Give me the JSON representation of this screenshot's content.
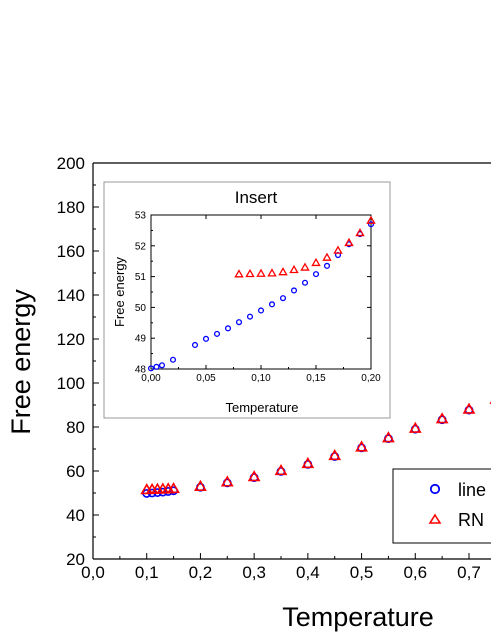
{
  "chart_data": [
    {
      "type": "scatter",
      "panel": "main",
      "title": "",
      "xlabel": "Temperature",
      "ylabel": "Free energy",
      "xlim": [
        0.0,
        0.75
      ],
      "ylim": [
        20,
        200
      ],
      "xticks": [
        "0,0",
        "0,1",
        "0,2",
        "0,3",
        "0,4",
        "0,5",
        "0,6",
        "0,7"
      ],
      "yticks": [
        "20",
        "40",
        "60",
        "80",
        "100",
        "120",
        "140",
        "160",
        "180",
        "200"
      ],
      "grid": false,
      "legend_position": "bottom-right",
      "series": [
        {
          "name": "line",
          "marker": "circle",
          "color": "#0000ff",
          "x": [
            0.1,
            0.11,
            0.12,
            0.13,
            0.14,
            0.15,
            0.2,
            0.25,
            0.3,
            0.35,
            0.4,
            0.45,
            0.5,
            0.55,
            0.6,
            0.65,
            0.7,
            0.75
          ],
          "y": [
            49.8,
            50.0,
            50.2,
            50.4,
            50.7,
            51.0,
            52.6,
            54.6,
            57.0,
            59.8,
            63.0,
            66.6,
            70.5,
            74.7,
            79.0,
            83.3,
            87.7,
            92.2
          ]
        },
        {
          "name": "RN",
          "marker": "triangle",
          "color": "#ff0000",
          "x": [
            0.1,
            0.11,
            0.12,
            0.13,
            0.14,
            0.15,
            0.2,
            0.25,
            0.3,
            0.35,
            0.4,
            0.45,
            0.5,
            0.55,
            0.6,
            0.65,
            0.7,
            0.75
          ],
          "y": [
            51.5,
            51.6,
            51.7,
            51.8,
            51.9,
            52.0,
            53.0,
            55.0,
            57.4,
            60.2,
            63.4,
            67.0,
            70.9,
            75.1,
            79.4,
            83.7,
            88.1,
            92.6
          ]
        }
      ]
    },
    {
      "type": "scatter",
      "panel": "inset",
      "title": "Insert",
      "xlabel": "Temperature",
      "ylabel": "Free energy",
      "xlim": [
        0.0,
        0.2
      ],
      "ylim": [
        48,
        53
      ],
      "xticks": [
        "0,00",
        "0,05",
        "0,10",
        "0,15",
        "0,20"
      ],
      "yticks": [
        "48",
        "49",
        "50",
        "51",
        "52",
        "53"
      ],
      "grid": false,
      "series": [
        {
          "name": "line",
          "marker": "circle",
          "color": "#0000ff",
          "x": [
            0.0,
            0.005,
            0.01,
            0.02,
            0.04,
            0.05,
            0.06,
            0.07,
            0.08,
            0.09,
            0.1,
            0.11,
            0.12,
            0.13,
            0.14,
            0.15,
            0.16,
            0.17,
            0.18,
            0.19,
            0.2
          ],
          "y": [
            48.02,
            48.07,
            48.12,
            48.3,
            48.78,
            48.98,
            49.14,
            49.32,
            49.52,
            49.7,
            49.9,
            50.1,
            50.3,
            50.55,
            50.8,
            51.08,
            51.35,
            51.7,
            52.05,
            52.38,
            52.7
          ]
        },
        {
          "name": "RN",
          "marker": "triangle",
          "color": "#ff0000",
          "x": [
            0.08,
            0.09,
            0.1,
            0.11,
            0.12,
            0.13,
            0.14,
            0.15,
            0.16,
            0.17,
            0.18,
            0.19,
            0.2
          ],
          "y": [
            51.08,
            51.09,
            51.1,
            51.11,
            51.15,
            51.22,
            51.3,
            51.45,
            51.62,
            51.85,
            52.1,
            52.42,
            52.82
          ]
        }
      ]
    }
  ]
}
